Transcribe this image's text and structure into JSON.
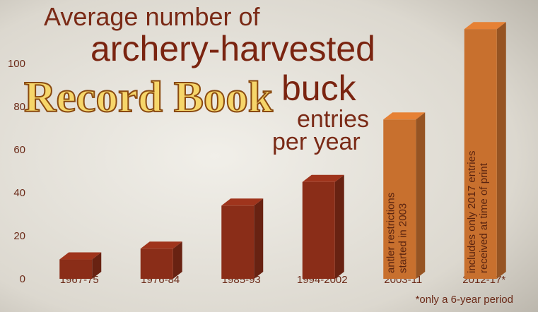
{
  "chart_data": {
    "type": "bar3d",
    "title_lines": [
      "Average number of",
      "archery-harvested",
      "Record Book",
      "buck",
      "entries",
      "per year"
    ],
    "categories": [
      "1967-75",
      "1976-84",
      "1985-93",
      "1994-2002",
      "2003-11",
      "2012-17*"
    ],
    "values": [
      9,
      14,
      34,
      45,
      74,
      116
    ],
    "colors": [
      "#8a2d18",
      "#8a2d18",
      "#8a2d18",
      "#8a2d18",
      "#c8702e",
      "#c8702e"
    ],
    "ylim": [
      0,
      120
    ],
    "yticks": [
      0,
      20,
      40,
      60,
      80,
      100
    ],
    "annotations": [
      {
        "category": "2003-11",
        "lines": [
          "antler restrictions",
          "started in 2003"
        ]
      },
      {
        "category": "2012-17*",
        "lines": [
          "includes only 2017 entries",
          "received at time of print"
        ]
      }
    ],
    "footnote": "*only a 6-year period"
  }
}
